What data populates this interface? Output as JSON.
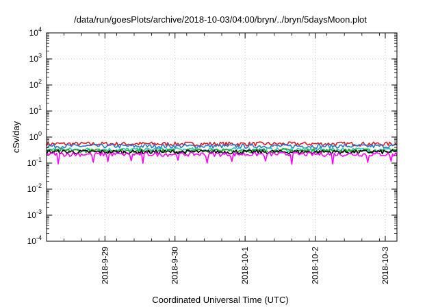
{
  "chart_data": {
    "type": "line",
    "title": "/data/run/goesPlots/archive/2018-10-03/04:00/bryn/../bryn/5daysMoon.plot",
    "xlabel": "Coordinated Universal Time (UTC)",
    "ylabel": "cSv/day",
    "yscale": "log",
    "ylim": [
      0.0001,
      10000
    ],
    "y_ticks": [
      {
        "base": "10",
        "exp": "4"
      },
      {
        "base": "10",
        "exp": "3"
      },
      {
        "base": "10",
        "exp": "2"
      },
      {
        "base": "10",
        "exp": "1"
      },
      {
        "base": "10",
        "exp": "0"
      },
      {
        "base": "10",
        "exp": "-1"
      },
      {
        "base": "10",
        "exp": "-2"
      },
      {
        "base": "10",
        "exp": "-3"
      },
      {
        "base": "10",
        "exp": "-4"
      }
    ],
    "x_ticks": [
      "2018-9-29",
      "2018-9-30",
      "2018-10-1",
      "2018-10-2",
      "2018-10-3"
    ],
    "xlim": [
      "2018-09-28T04:00",
      "2018-10-03T04:00"
    ],
    "grid": true,
    "series": [
      {
        "color": "#e41a1c",
        "level": 0.55,
        "spike_depth": 0.0
      },
      {
        "color": "#1f78d4",
        "level": 0.45,
        "spike_depth": 0.0
      },
      {
        "color": "#2ec7b4",
        "level": 0.33,
        "spike_depth": 0.0
      },
      {
        "color": "#22aa22",
        "level": 0.3,
        "spike_depth": 0.0
      },
      {
        "color": "#000000",
        "level": 0.27,
        "spike_depth": 0.0
      },
      {
        "color": "#ff00ff",
        "level": 0.22,
        "spike_depth": 0.1
      }
    ]
  }
}
